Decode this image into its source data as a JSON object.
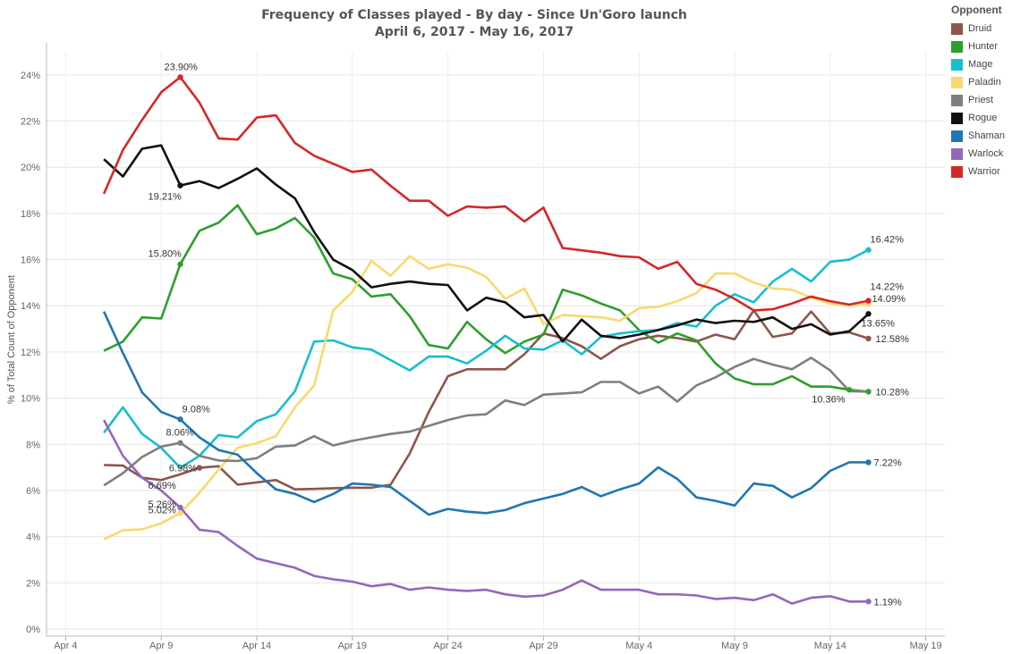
{
  "chart_data": {
    "type": "line",
    "title": "Frequency of Classes played - By day - Since Un'Goro launch",
    "subtitle": "April 6, 2017 - May 16, 2017",
    "ylabel": "% of Total Count of Opponent",
    "xlabel": "",
    "ylim": [
      0,
      25
    ],
    "y_ticks": [
      "0%",
      "2%",
      "4%",
      "6%",
      "8%",
      "10%",
      "12%",
      "14%",
      "16%",
      "18%",
      "20%",
      "22%",
      "24%"
    ],
    "x_range": [
      "2017-04-03",
      "2017-05-20"
    ],
    "x_ticks": [
      {
        "date": "2017-04-04",
        "label": "Apr 4"
      },
      {
        "date": "2017-04-09",
        "label": "Apr 9"
      },
      {
        "date": "2017-04-14",
        "label": "Apr 14"
      },
      {
        "date": "2017-04-19",
        "label": "Apr 19"
      },
      {
        "date": "2017-04-24",
        "label": "Apr 24"
      },
      {
        "date": "2017-04-29",
        "label": "Apr 29"
      },
      {
        "date": "2017-05-04",
        "label": "May 4"
      },
      {
        "date": "2017-05-09",
        "label": "May 9"
      },
      {
        "date": "2017-05-14",
        "label": "May 14"
      },
      {
        "date": "2017-05-19",
        "label": "May 19"
      }
    ],
    "grid": true,
    "legend_title": "Opponent",
    "legend_position": "right",
    "x": [
      "2017-04-06",
      "2017-04-07",
      "2017-04-08",
      "2017-04-09",
      "2017-04-10",
      "2017-04-11",
      "2017-04-12",
      "2017-04-13",
      "2017-04-14",
      "2017-04-15",
      "2017-04-16",
      "2017-04-17",
      "2017-04-18",
      "2017-04-19",
      "2017-04-20",
      "2017-04-21",
      "2017-04-22",
      "2017-04-23",
      "2017-04-24",
      "2017-04-25",
      "2017-04-26",
      "2017-04-27",
      "2017-04-28",
      "2017-04-29",
      "2017-04-30",
      "2017-05-01",
      "2017-05-02",
      "2017-05-03",
      "2017-05-04",
      "2017-05-05",
      "2017-05-06",
      "2017-05-07",
      "2017-05-08",
      "2017-05-09",
      "2017-05-10",
      "2017-05-11",
      "2017-05-12",
      "2017-05-13",
      "2017-05-14",
      "2017-05-15",
      "2017-05-16"
    ],
    "series": [
      {
        "name": "Druid",
        "color": "#8c564b",
        "values": [
          7.1,
          7.08,
          6.55,
          6.45,
          6.7,
          6.98,
          7.05,
          6.25,
          6.35,
          6.45,
          6.05,
          6.07,
          6.1,
          6.12,
          6.12,
          6.25,
          7.6,
          9.4,
          10.95,
          11.25,
          11.25,
          11.25,
          11.9,
          12.8,
          12.6,
          12.25,
          11.7,
          12.25,
          12.55,
          12.7,
          12.6,
          12.45,
          12.75,
          12.55,
          13.8,
          12.65,
          12.8,
          13.75,
          12.8,
          12.85,
          12.58
        ],
        "labels": [
          {
            "index": 5,
            "text": "6.98%"
          },
          {
            "index": 40,
            "text": "12.58%"
          }
        ]
      },
      {
        "name": "Hunter",
        "color": "#2ca02c",
        "values": [
          12.05,
          12.45,
          13.5,
          13.45,
          15.8,
          17.25,
          17.6,
          18.35,
          17.1,
          17.35,
          17.8,
          16.95,
          15.4,
          15.15,
          14.4,
          14.5,
          13.55,
          12.3,
          12.15,
          13.3,
          12.55,
          11.95,
          12.45,
          12.75,
          14.7,
          14.45,
          14.1,
          13.8,
          12.95,
          12.4,
          12.8,
          12.5,
          11.5,
          10.85,
          10.6,
          10.6,
          10.95,
          10.5,
          10.5,
          10.36,
          10.28
        ],
        "labels": [
          {
            "index": 4,
            "text": "15.80%"
          },
          {
            "index": 39,
            "text": "10.36%"
          },
          {
            "index": 40,
            "text": "10.28%"
          }
        ]
      },
      {
        "name": "Mage",
        "color": "#17becf",
        "values": [
          8.5,
          9.6,
          8.45,
          7.85,
          6.98,
          7.5,
          8.4,
          8.3,
          9.0,
          9.3,
          10.3,
          12.45,
          12.5,
          12.2,
          12.1,
          11.65,
          11.2,
          11.8,
          11.8,
          11.5,
          12.05,
          12.7,
          12.15,
          12.1,
          12.5,
          11.9,
          12.65,
          12.8,
          12.9,
          12.95,
          13.25,
          13.1,
          14.0,
          14.5,
          14.15,
          15.05,
          15.6,
          15.05,
          15.9,
          16.0,
          16.42
        ],
        "labels": [
          {
            "index": 40,
            "text": "16.42%"
          }
        ]
      },
      {
        "name": "Paladin",
        "color": "#f8d96e",
        "values": [
          3.88,
          4.28,
          4.32,
          4.58,
          5.02,
          5.9,
          6.9,
          7.85,
          8.05,
          8.35,
          9.6,
          10.55,
          13.8,
          14.6,
          15.95,
          15.3,
          16.15,
          15.6,
          15.8,
          15.65,
          15.25,
          14.3,
          14.75,
          13.2,
          13.6,
          13.55,
          13.5,
          13.35,
          13.9,
          13.95,
          14.2,
          14.55,
          15.4,
          15.4,
          15.0,
          14.75,
          14.7,
          14.35,
          14.1,
          14.0,
          14.09
        ],
        "labels": [
          {
            "index": 4,
            "text": "5.02%"
          },
          {
            "index": 40,
            "text": "14.09%"
          }
        ]
      },
      {
        "name": "Priest",
        "color": "#7f7f7f",
        "values": [
          6.22,
          6.75,
          7.45,
          7.9,
          8.06,
          7.5,
          7.3,
          7.28,
          7.4,
          7.9,
          7.95,
          8.35,
          7.95,
          8.15,
          8.3,
          8.45,
          8.55,
          8.8,
          9.05,
          9.25,
          9.3,
          9.9,
          9.7,
          10.15,
          10.2,
          10.25,
          10.7,
          10.7,
          10.2,
          10.5,
          9.85,
          10.55,
          10.9,
          11.35,
          11.7,
          11.45,
          11.25,
          11.75,
          11.2,
          10.3,
          10.28
        ],
        "labels": [
          {
            "index": 4,
            "text": "8.06%"
          }
        ]
      },
      {
        "name": "Rogue",
        "color": "#111111",
        "values": [
          20.35,
          19.6,
          20.8,
          20.95,
          19.21,
          19.4,
          19.1,
          19.5,
          19.95,
          19.25,
          18.65,
          17.2,
          16.0,
          15.55,
          14.8,
          14.95,
          15.05,
          14.95,
          14.9,
          13.8,
          14.35,
          14.15,
          13.5,
          13.6,
          12.45,
          13.4,
          12.7,
          12.6,
          12.75,
          12.95,
          13.15,
          13.4,
          13.25,
          13.35,
          13.3,
          13.5,
          13.0,
          13.2,
          12.75,
          12.9,
          13.65
        ],
        "labels": [
          {
            "index": 4,
            "text": "19.21%"
          },
          {
            "index": 40,
            "text": "13.65%"
          }
        ]
      },
      {
        "name": "Shaman",
        "color": "#1f77b4",
        "values": [
          13.75,
          11.95,
          10.25,
          9.4,
          9.08,
          8.3,
          7.75,
          7.55,
          6.75,
          6.05,
          5.85,
          5.5,
          5.85,
          6.3,
          6.25,
          6.15,
          5.55,
          4.95,
          5.2,
          5.08,
          5.02,
          5.15,
          5.45,
          5.65,
          5.85,
          6.15,
          5.75,
          6.05,
          6.3,
          7.0,
          6.5,
          5.7,
          5.55,
          5.35,
          6.3,
          6.2,
          5.7,
          6.1,
          6.85,
          7.22,
          7.22
        ],
        "labels": [
          {
            "index": 4,
            "text": "9.08%"
          },
          {
            "index": 40,
            "text": "7.22%"
          }
        ]
      },
      {
        "name": "Warlock",
        "color": "#9467bd",
        "values": [
          9.05,
          7.5,
          6.55,
          6.0,
          5.26,
          4.3,
          4.2,
          3.6,
          3.05,
          2.85,
          2.65,
          2.3,
          2.15,
          2.05,
          1.85,
          1.95,
          1.7,
          1.8,
          1.7,
          1.65,
          1.7,
          1.5,
          1.4,
          1.45,
          1.7,
          2.1,
          1.7,
          1.7,
          1.7,
          1.5,
          1.5,
          1.45,
          1.3,
          1.35,
          1.25,
          1.5,
          1.1,
          1.35,
          1.42,
          1.19,
          1.19
        ],
        "labels": [
          {
            "index": 4,
            "text": "5.26%"
          },
          {
            "index": 40,
            "text": "1.19%"
          }
        ]
      },
      {
        "name": "Warrior",
        "color": "#d62728",
        "values": [
          18.85,
          20.75,
          22.05,
          23.25,
          23.9,
          22.8,
          21.25,
          21.2,
          22.15,
          22.25,
          21.05,
          20.5,
          20.15,
          19.8,
          19.9,
          19.2,
          18.55,
          18.55,
          17.9,
          18.3,
          18.25,
          18.3,
          17.65,
          18.25,
          16.5,
          16.4,
          16.3,
          16.15,
          16.1,
          15.6,
          15.9,
          14.95,
          14.7,
          14.3,
          13.8,
          13.85,
          14.1,
          14.4,
          14.2,
          14.05,
          14.22
        ],
        "labels": [
          {
            "index": 4,
            "text": "23.90%"
          },
          {
            "index": 40,
            "text": "14.22%"
          }
        ]
      }
    ],
    "extra_labels": [
      {
        "series": "Druid",
        "index": 4,
        "text": "6.69%"
      }
    ]
  }
}
